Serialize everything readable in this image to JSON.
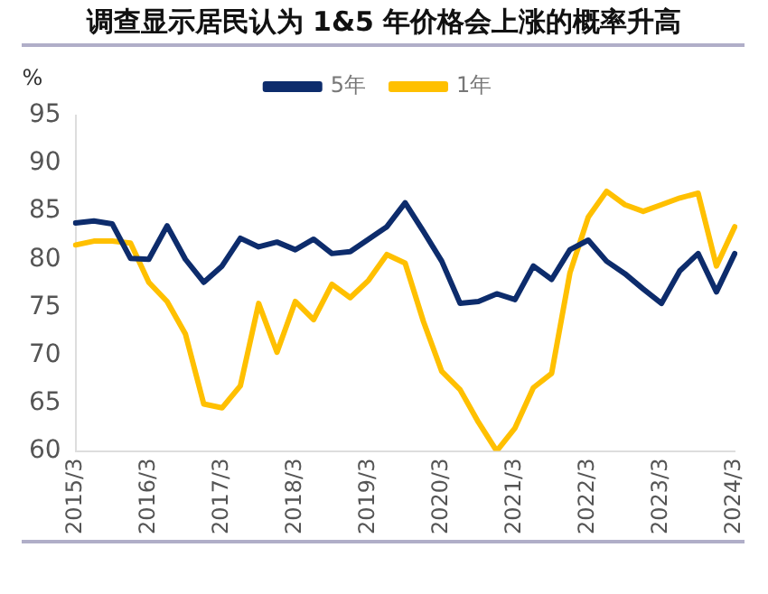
{
  "chart_data": {
    "type": "line",
    "title": "调查显示居民认为 1&5 年价格会上涨的概率升高",
    "ylabel": "%",
    "categories": [
      "2015/3",
      null,
      null,
      null,
      "2016/3",
      null,
      null,
      null,
      "2017/3",
      null,
      null,
      null,
      "2018/3",
      null,
      null,
      null,
      "2019/3",
      null,
      null,
      null,
      "2020/3",
      null,
      null,
      null,
      "2021/3",
      null,
      null,
      null,
      "2022/3",
      null,
      null,
      null,
      "2023/3",
      null,
      null,
      null,
      "2024/3"
    ],
    "series": [
      {
        "name": "5年",
        "color": "#0d2c6c",
        "values": [
          83.8,
          84.0,
          83.7,
          80.1,
          80.0,
          83.5,
          80.0,
          77.6,
          79.3,
          82.2,
          81.3,
          81.8,
          81.0,
          82.1,
          80.6,
          80.8,
          82.1,
          83.4,
          85.9,
          82.9,
          79.8,
          75.4,
          75.6,
          76.4,
          75.8,
          79.3,
          77.9,
          81.0,
          82.0,
          79.8,
          78.5,
          76.9,
          75.4,
          78.8,
          80.6,
          76.6,
          80.6
        ]
      },
      {
        "name": "1年",
        "color": "#ffc000",
        "values": [
          81.5,
          81.9,
          81.9,
          81.7,
          77.6,
          75.6,
          72.2,
          64.9,
          64.5,
          66.8,
          75.4,
          70.3,
          75.6,
          73.7,
          77.4,
          76.0,
          77.8,
          80.5,
          79.6,
          73.5,
          68.3,
          66.4,
          63.0,
          60.0,
          62.4,
          66.6,
          68.1,
          78.6,
          84.4,
          87.1,
          85.7,
          85.0,
          85.7,
          86.4,
          86.9,
          79.3,
          83.4
        ]
      }
    ],
    "ylim": [
      60,
      95
    ],
    "yticks": [
      60,
      65,
      70,
      75,
      80,
      85,
      90,
      95
    ],
    "grid": false,
    "legend": "top",
    "marker": "none",
    "line_style": "solid"
  }
}
